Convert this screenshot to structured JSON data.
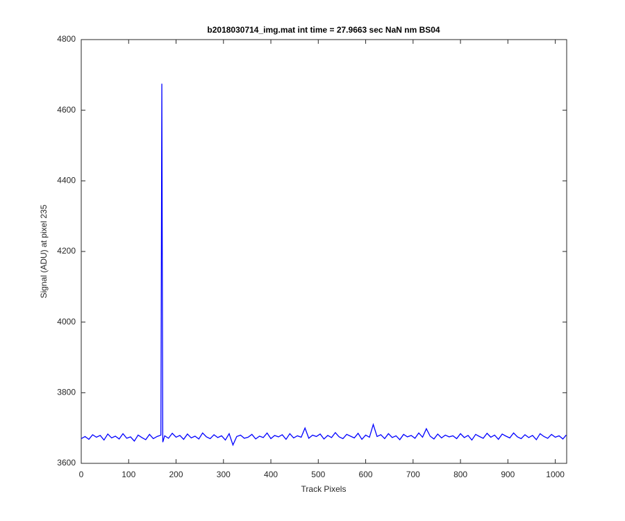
{
  "chart_data": {
    "type": "line",
    "title": "b2018030714_img.mat int time = 27.9663 sec  NaN nm BS04",
    "xlabel": "Track Pixels",
    "ylabel": "Signal (ADU) at pixel 235",
    "xlim": [
      0,
      1024
    ],
    "ylim": [
      3600,
      4800
    ],
    "xticks": [
      0,
      100,
      200,
      300,
      400,
      500,
      600,
      700,
      800,
      900,
      1000
    ],
    "yticks": [
      3600,
      3800,
      4000,
      4200,
      4400,
      4600,
      4800
    ],
    "series": [
      {
        "color": "#0000ff",
        "x": [
          0,
          8,
          16,
          24,
          32,
          40,
          48,
          56,
          64,
          72,
          80,
          88,
          96,
          104,
          112,
          120,
          128,
          136,
          144,
          152,
          160,
          168,
          170,
          172,
          176,
          184,
          192,
          200,
          208,
          216,
          224,
          232,
          240,
          248,
          256,
          264,
          272,
          280,
          288,
          296,
          304,
          312,
          320,
          328,
          336,
          344,
          352,
          360,
          368,
          376,
          384,
          392,
          400,
          408,
          416,
          424,
          432,
          440,
          448,
          456,
          464,
          472,
          480,
          488,
          496,
          504,
          512,
          520,
          528,
          536,
          544,
          552,
          560,
          568,
          576,
          584,
          592,
          600,
          608,
          616,
          624,
          632,
          640,
          648,
          656,
          664,
          672,
          680,
          688,
          696,
          704,
          712,
          720,
          728,
          736,
          744,
          752,
          760,
          768,
          776,
          784,
          792,
          800,
          808,
          816,
          824,
          832,
          840,
          848,
          856,
          864,
          872,
          880,
          888,
          896,
          904,
          912,
          920,
          928,
          936,
          944,
          952,
          960,
          968,
          976,
          984,
          992,
          1000,
          1008,
          1016,
          1023
        ],
        "values": [
          3670,
          3676,
          3668,
          3681,
          3674,
          3679,
          3666,
          3683,
          3672,
          3677,
          3669,
          3684,
          3671,
          3675,
          3663,
          3680,
          3673,
          3667,
          3682,
          3670,
          3676,
          3680,
          4675,
          3660,
          3678,
          3671,
          3685,
          3674,
          3679,
          3668,
          3683,
          3672,
          3677,
          3669,
          3686,
          3675,
          3670,
          3681,
          3673,
          3678,
          3666,
          3684,
          3652,
          3676,
          3680,
          3671,
          3674,
          3682,
          3669,
          3677,
          3673,
          3686,
          3670,
          3679,
          3675,
          3681,
          3668,
          3684,
          3672,
          3678,
          3674,
          3700,
          3671,
          3680,
          3676,
          3683,
          3669,
          3679,
          3673,
          3687,
          3675,
          3670,
          3682,
          3677,
          3672,
          3685,
          3668,
          3680,
          3674,
          3710,
          3676,
          3681,
          3670,
          3684,
          3673,
          3678,
          3667,
          3682,
          3675,
          3679,
          3671,
          3686,
          3674,
          3698,
          3677,
          3669,
          3683,
          3672,
          3680,
          3675,
          3678,
          3670,
          3684,
          3673,
          3679,
          3666,
          3682,
          3676,
          3671,
          3685,
          3674,
          3680,
          3668,
          3683,
          3677,
          3672,
          3686,
          3675,
          3670,
          3681,
          3673,
          3679,
          3667,
          3684,
          3676,
          3671,
          3682,
          3674,
          3678,
          3669,
          3680
        ]
      }
    ]
  }
}
